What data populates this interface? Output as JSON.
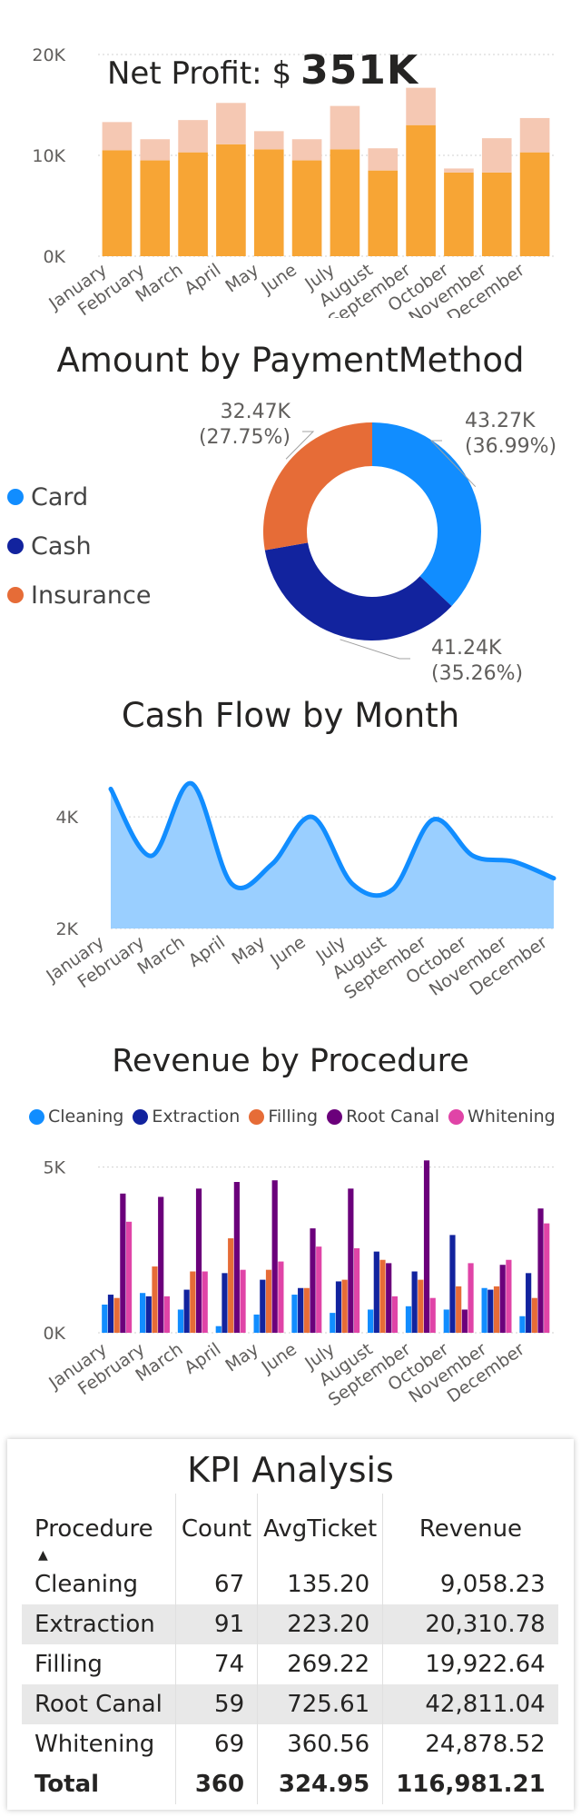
{
  "net_profit": {
    "label": "Net Profit: $",
    "value": "351K"
  },
  "chart_data": [
    {
      "id": "monthly-stacked",
      "type": "bar",
      "title": "",
      "categories": [
        "January",
        "February",
        "March",
        "April",
        "May",
        "June",
        "July",
        "August",
        "September",
        "October",
        "November",
        "December"
      ],
      "series": [
        {
          "values": [
            10500,
            9500,
            10300,
            11100,
            10600,
            9500,
            10600,
            8500,
            13000,
            8300,
            8300,
            10300
          ],
          "color": "#F7A535"
        },
        {
          "values": [
            2800,
            2100,
            3200,
            4100,
            1800,
            2100,
            4300,
            2200,
            3700,
            400,
            3400,
            3400
          ],
          "color": "#F5C8B3"
        }
      ],
      "yticks": [
        "0K",
        "10K",
        "20K"
      ],
      "ylim": [
        0,
        20000
      ],
      "grid": true
    },
    {
      "id": "payment-donut",
      "type": "pie",
      "title": "Amount by PaymentMethod",
      "legend": [
        "Card",
        "Cash",
        "Insurance"
      ],
      "slices": [
        {
          "name": "Card",
          "value": 43.27,
          "label": "43.27K",
          "pct": "(36.99%)",
          "color": "#118DFF"
        },
        {
          "name": "Cash",
          "value": 41.24,
          "label": "41.24K",
          "pct": "(35.26%)",
          "color": "#12239E"
        },
        {
          "name": "Insurance",
          "value": 32.47,
          "label": "32.47K",
          "pct": "(27.75%)",
          "color": "#E66C37"
        }
      ],
      "legend_placement": "left"
    },
    {
      "id": "cashflow-area",
      "type": "area",
      "title": "Cash Flow by Month",
      "categories": [
        "January",
        "February",
        "March",
        "April",
        "May",
        "June",
        "July",
        "August",
        "September",
        "October",
        "November",
        "December"
      ],
      "values": [
        4500,
        3300,
        4600,
        2800,
        3150,
        4000,
        2800,
        2700,
        3950,
        3300,
        3200,
        2900
      ],
      "yticks": [
        "2K",
        "4K"
      ],
      "ylim": [
        2000,
        4800
      ],
      "color": "#118DFF",
      "grid": true
    },
    {
      "id": "procedure-clustered",
      "type": "bar",
      "title": "Revenue by Procedure",
      "categories": [
        "January",
        "February",
        "March",
        "April",
        "May",
        "June",
        "July",
        "August",
        "September",
        "October",
        "November",
        "December"
      ],
      "series": [
        {
          "name": "Cleaning",
          "color": "#118DFF",
          "values": [
            850,
            1200,
            700,
            200,
            550,
            1150,
            600,
            700,
            800,
            700,
            1350,
            500
          ]
        },
        {
          "name": "Extraction",
          "color": "#12239E",
          "values": [
            1150,
            1100,
            1300,
            1800,
            1600,
            1350,
            1550,
            2450,
            1850,
            2950,
            1300,
            1800
          ]
        },
        {
          "name": "Filling",
          "color": "#E66C37",
          "values": [
            1050,
            2000,
            1850,
            2850,
            1900,
            1350,
            1600,
            2200,
            1600,
            1400,
            1400,
            1050
          ]
        },
        {
          "name": "Root Canal",
          "color": "#6B007B",
          "values": [
            4200,
            4100,
            4350,
            4550,
            4600,
            3150,
            4350,
            2100,
            5200,
            700,
            2050,
            3750
          ]
        },
        {
          "name": "Whitening",
          "color": "#E044A7",
          "values": [
            3350,
            1100,
            1850,
            1900,
            2150,
            2600,
            2550,
            1100,
            1050,
            2100,
            2200,
            3300
          ]
        }
      ],
      "yticks": [
        "0K",
        "5K"
      ],
      "ylim": [
        0,
        5400
      ],
      "legend_placement": "top",
      "grid": true
    }
  ],
  "kpi": {
    "title": "KPI Analysis",
    "headers": [
      "Procedure",
      "Count",
      "AvgTicket",
      "Revenue"
    ],
    "sort_indicator": "▲",
    "rows": [
      [
        "Cleaning",
        "67",
        "135.20",
        "9,058.23"
      ],
      [
        "Extraction",
        "91",
        "223.20",
        "20,310.78"
      ],
      [
        "Filling",
        "74",
        "269.22",
        "19,922.64"
      ],
      [
        "Root Canal",
        "59",
        "725.61",
        "42,811.04"
      ],
      [
        "Whitening",
        "69",
        "360.56",
        "24,878.52"
      ]
    ],
    "total": [
      "Total",
      "360",
      "324.95",
      "116,981.21"
    ]
  }
}
